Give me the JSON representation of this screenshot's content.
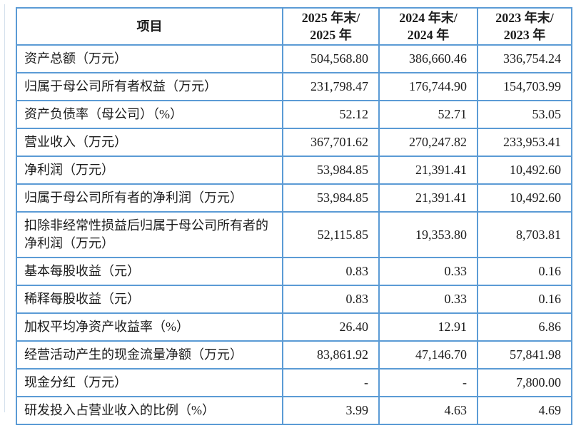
{
  "colors": {
    "border": "#5b9bd5",
    "text": "#1b1b1b",
    "background": "#ffffff"
  },
  "table": {
    "columns": [
      {
        "label": "项目"
      },
      {
        "line1": "2025 年末/",
        "line2": "2025 年"
      },
      {
        "line1": "2024 年末/",
        "line2": "2024 年"
      },
      {
        "line1": "2023 年末/",
        "line2": "2023 年"
      }
    ],
    "rows": [
      {
        "label": "资产总额（万元）",
        "values": [
          "504,568.80",
          "386,660.46",
          "336,754.24"
        ]
      },
      {
        "label": "归属于母公司所有者权益（万元）",
        "values": [
          "231,798.47",
          "176,744.90",
          "154,703.99"
        ]
      },
      {
        "label": "资产负债率（母公司）（%）",
        "values": [
          "52.12",
          "52.71",
          "53.05"
        ]
      },
      {
        "label": "营业收入（万元）",
        "values": [
          "367,701.62",
          "270,247.82",
          "233,953.41"
        ]
      },
      {
        "label": "净利润（万元）",
        "values": [
          "53,984.85",
          "21,391.41",
          "10,492.60"
        ]
      },
      {
        "label": "归属于母公司所有者的净利润（万元）",
        "values": [
          "53,984.85",
          "21,391.41",
          "10,492.60"
        ]
      },
      {
        "label": "扣除非经常性损益后归属于母公司所有者的净利润（万元）",
        "values": [
          "52,115.85",
          "19,353.80",
          "8,703.81"
        ]
      },
      {
        "label": "基本每股收益（元）",
        "values": [
          "0.83",
          "0.33",
          "0.16"
        ]
      },
      {
        "label": "稀释每股收益（元）",
        "values": [
          "0.83",
          "0.33",
          "0.16"
        ]
      },
      {
        "label": "加权平均净资产收益率（%）",
        "values": [
          "26.40",
          "12.91",
          "6.86"
        ]
      },
      {
        "label": "经营活动产生的现金流量净额（万元）",
        "values": [
          "83,861.92",
          "47,146.70",
          "57,841.98"
        ]
      },
      {
        "label": "现金分红（万元）",
        "values": [
          "-",
          "-",
          "7,800.00"
        ]
      },
      {
        "label": "研发投入占营业收入的比例（%）",
        "values": [
          "3.99",
          "4.63",
          "4.69"
        ]
      }
    ]
  }
}
